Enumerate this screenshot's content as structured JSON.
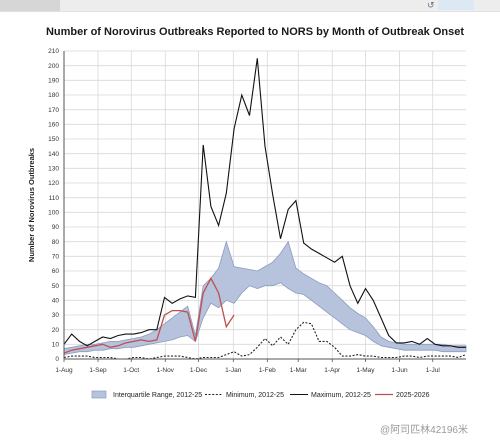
{
  "chart_data": {
    "type": "line",
    "title": "Number of Norovirus Outbreaks Reported to NORS by Month of Outbreak Onset",
    "xlabel": "",
    "ylabel": "Number of Norovirus Outbreaks",
    "ylim": [
      0,
      210
    ],
    "yticks": [
      0,
      10,
      20,
      30,
      40,
      50,
      60,
      70,
      80,
      90,
      100,
      110,
      120,
      130,
      140,
      150,
      160,
      170,
      180,
      190,
      200,
      210
    ],
    "xlim": [
      0,
      52
    ],
    "xticks": [
      {
        "x": 0,
        "label": "1-Aug"
      },
      {
        "x": 4.4,
        "label": "1-Sep"
      },
      {
        "x": 8.7,
        "label": "1-Oct"
      },
      {
        "x": 13.1,
        "label": "1-Nov"
      },
      {
        "x": 17.4,
        "label": "1-Dec"
      },
      {
        "x": 21.9,
        "label": "1-Jan"
      },
      {
        "x": 26.3,
        "label": "1-Feb"
      },
      {
        "x": 30.3,
        "label": "1-Mar"
      },
      {
        "x": 34.7,
        "label": "1-Apr"
      },
      {
        "x": 39.0,
        "label": "1-May"
      },
      {
        "x": 43.4,
        "label": "1-Jun"
      },
      {
        "x": 47.7,
        "label": "1-Jul"
      }
    ],
    "grid": true,
    "legend_position": "bottom",
    "iqr": {
      "name": "Interquartile Range, 2012-25",
      "x": [
        0,
        1,
        2,
        3,
        4,
        5,
        6,
        7,
        8,
        9,
        10,
        11,
        12,
        13,
        14,
        15,
        16,
        17,
        18,
        19,
        20,
        21,
        22,
        23,
        24,
        25,
        26,
        27,
        28,
        29,
        30,
        31,
        32,
        33,
        34,
        35,
        36,
        37,
        38,
        39,
        40,
        41,
        42,
        43,
        44,
        45,
        46,
        47,
        48,
        49,
        50,
        51,
        52
      ],
      "lower": [
        3,
        4,
        5,
        5,
        6,
        6,
        7,
        7,
        8,
        8,
        9,
        10,
        11,
        12,
        13,
        15,
        16,
        12,
        28,
        38,
        35,
        40,
        38,
        45,
        50,
        48,
        50,
        50,
        52,
        48,
        45,
        44,
        40,
        36,
        32,
        28,
        24,
        20,
        18,
        16,
        12,
        9,
        8,
        7,
        6,
        6,
        6,
        6,
        6,
        5,
        5,
        5,
        5
      ],
      "upper": [
        7,
        8,
        9,
        10,
        10,
        11,
        12,
        12,
        13,
        14,
        15,
        17,
        20,
        24,
        28,
        32,
        36,
        16,
        50,
        55,
        62,
        80,
        63,
        62,
        61,
        60,
        63,
        66,
        72,
        80,
        62,
        58,
        55,
        52,
        50,
        45,
        40,
        35,
        31,
        28,
        22,
        15,
        12,
        11,
        10,
        10,
        10,
        10,
        10,
        10,
        9,
        9,
        9
      ]
    },
    "series": [
      {
        "name": "Minimum, 2012-25",
        "x": [
          0,
          1,
          2,
          3,
          4,
          5,
          6,
          7,
          8,
          9,
          10,
          11,
          12,
          13,
          14,
          15,
          16,
          17,
          18,
          19,
          20,
          21,
          22,
          23,
          24,
          25,
          26,
          27,
          28,
          29,
          30,
          31,
          32,
          33,
          34,
          35,
          36,
          37,
          38,
          39,
          40,
          41,
          42,
          43,
          44,
          45,
          46,
          47,
          48,
          49,
          50,
          51,
          52
        ],
        "values": [
          1,
          2,
          2,
          2,
          1,
          1,
          1,
          0,
          0,
          1,
          1,
          0,
          1,
          2,
          2,
          2,
          1,
          0,
          1,
          1,
          1,
          3,
          5,
          2,
          3,
          8,
          14,
          9,
          15,
          10,
          20,
          25,
          24,
          12,
          12,
          8,
          2,
          2,
          3,
          2,
          2,
          1,
          1,
          1,
          2,
          2,
          1,
          2,
          2,
          2,
          2,
          1,
          3
        ]
      },
      {
        "name": "Maximum, 2012-25",
        "x": [
          0,
          1,
          2,
          3,
          4,
          5,
          6,
          7,
          8,
          9,
          10,
          11,
          12,
          13,
          14,
          15,
          16,
          17,
          18,
          19,
          20,
          21,
          22,
          23,
          24,
          25,
          26,
          27,
          28,
          29,
          30,
          31,
          32,
          33,
          34,
          35,
          36,
          37,
          38,
          39,
          40,
          41,
          42,
          43,
          44,
          45,
          46,
          47,
          48,
          49,
          50,
          51,
          52
        ],
        "values": [
          10,
          17,
          12,
          9,
          12,
          15,
          14,
          16,
          17,
          17,
          18,
          20,
          20,
          42,
          38,
          41,
          43,
          42,
          146,
          104,
          91,
          113,
          157,
          180,
          166,
          205,
          145,
          112,
          82,
          102,
          108,
          79,
          75,
          72,
          69,
          66,
          70,
          50,
          38,
          48,
          40,
          28,
          16,
          11,
          11,
          12,
          10,
          14,
          10,
          9,
          9,
          8,
          8
        ]
      },
      {
        "name": "2025-2026",
        "x": [
          0,
          1,
          2,
          3,
          4,
          5,
          6,
          7,
          8,
          9,
          10,
          11,
          12,
          13,
          14,
          15,
          16,
          17,
          18,
          19,
          20,
          21,
          22
        ],
        "values": [
          4,
          6,
          7,
          8,
          9,
          10,
          8,
          9,
          11,
          12,
          13,
          12,
          13,
          30,
          33,
          33,
          32,
          12,
          45,
          55,
          45,
          22,
          30
        ]
      }
    ],
    "colors": {
      "iqr_fill": "#b7c3dc",
      "iqr_stroke": "#8a9cc0",
      "minimum": "#222222",
      "maximum": "#111111",
      "current": "#c0504d",
      "grid": "#d9d9d9"
    }
  },
  "watermark": "@阿司匹林42196米"
}
